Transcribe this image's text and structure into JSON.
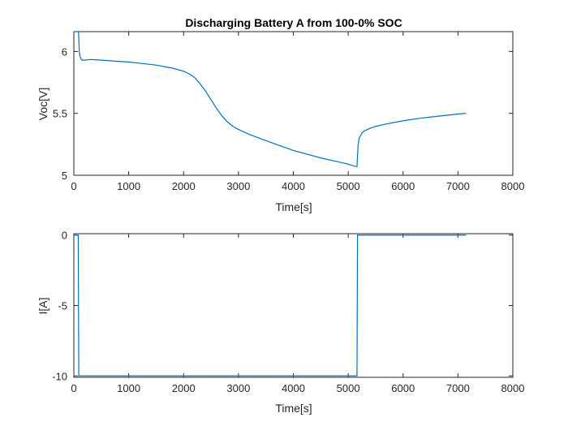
{
  "chart_data": [
    {
      "type": "line",
      "title": "Discharging Battery A from 100-0% SOC",
      "xlabel": "Time[s]",
      "ylabel": "Voc[V]",
      "xlim": [
        0,
        8000
      ],
      "ylim": [
        5,
        6.16
      ],
      "xticks": [
        0,
        1000,
        2000,
        3000,
        4000,
        5000,
        6000,
        7000,
        8000
      ],
      "yticks": [
        5,
        5.5,
        6
      ],
      "ytick_labels": [
        "5",
        "5.5",
        "6"
      ],
      "line_color": "#0072BD",
      "grid": false,
      "series": [
        {
          "x": [
            0,
            60,
            85,
            100,
            120,
            150,
            200,
            300,
            500,
            800,
            1000,
            1200,
            1500,
            1800,
            2000,
            2100,
            2200,
            2300,
            2400,
            2500,
            2600,
            2700,
            2800,
            2900,
            3000,
            3200,
            3500,
            4000,
            4500,
            4800,
            5000,
            5100,
            5150,
            5160,
            5170,
            5180,
            5200,
            5250,
            5300,
            5400,
            5500,
            5700,
            6000,
            6300,
            6500,
            6800,
            7000,
            7150
          ],
          "y": [
            6.16,
            6.16,
            6.16,
            5.99,
            5.95,
            5.93,
            5.93,
            5.935,
            5.93,
            5.92,
            5.915,
            5.905,
            5.89,
            5.865,
            5.84,
            5.82,
            5.79,
            5.74,
            5.68,
            5.61,
            5.54,
            5.48,
            5.43,
            5.395,
            5.37,
            5.33,
            5.28,
            5.2,
            5.14,
            5.11,
            5.09,
            5.075,
            5.07,
            5.07,
            5.16,
            5.24,
            5.3,
            5.34,
            5.36,
            5.38,
            5.395,
            5.415,
            5.44,
            5.46,
            5.47,
            5.485,
            5.495,
            5.5
          ]
        }
      ]
    },
    {
      "type": "line",
      "title": "",
      "xlabel": "Time[s]",
      "ylabel": "I[A]",
      "xlim": [
        0,
        8000
      ],
      "ylim": [
        -10.1,
        0.1
      ],
      "xticks": [
        0,
        1000,
        2000,
        3000,
        4000,
        5000,
        6000,
        7000,
        8000
      ],
      "yticks": [
        -10,
        -5,
        0
      ],
      "ytick_labels": [
        "-10",
        "-5",
        "0"
      ],
      "line_color": "#0072BD",
      "grid": false,
      "series": [
        {
          "x": [
            0,
            60,
            80,
            90,
            100,
            500,
            1000,
            2000,
            3000,
            4000,
            5000,
            5150,
            5160,
            5170,
            5200,
            6000,
            7000,
            7150
          ],
          "y": [
            0,
            0,
            0,
            -10,
            -10,
            -10,
            -10,
            -10,
            -10,
            -10,
            -10,
            -10,
            -10,
            0,
            0,
            0,
            0,
            0
          ]
        }
      ]
    }
  ]
}
